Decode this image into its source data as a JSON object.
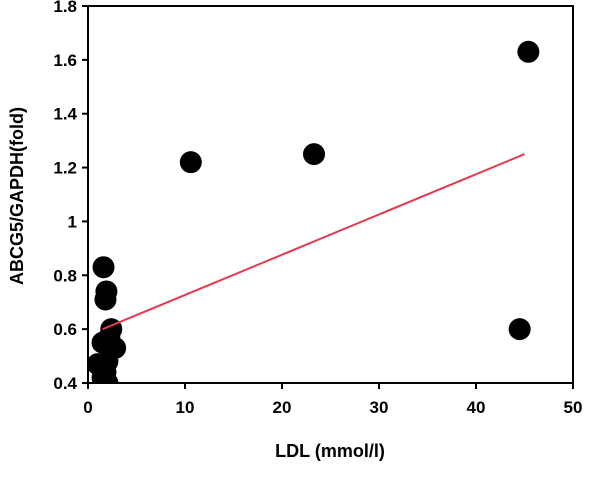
{
  "chart_data": {
    "type": "scatter",
    "title": "",
    "xlabel": "LDL (mmol/l)",
    "ylabel": "ABCG5/GAPDH(fold)",
    "xlim": [
      0,
      50
    ],
    "ylim": [
      0.4,
      1.8
    ],
    "xticks": [
      0,
      10,
      20,
      30,
      40,
      50
    ],
    "yticks": [
      0.4,
      0.6,
      0.8,
      1,
      1.2,
      1.4,
      1.6,
      1.8
    ],
    "xtick_labels": [
      "0",
      "10",
      "20",
      "30",
      "40",
      "50"
    ],
    "ytick_labels": [
      "0.4",
      "0.6",
      "0.8",
      "1",
      "1.2",
      "1.4",
      "1.6",
      "1.8"
    ],
    "grid": false,
    "points": [
      {
        "x": 1.0,
        "y": 0.47
      },
      {
        "x": 1.5,
        "y": 0.42
      },
      {
        "x": 1.5,
        "y": 0.55
      },
      {
        "x": 1.6,
        "y": 0.83
      },
      {
        "x": 1.8,
        "y": 0.44
      },
      {
        "x": 1.8,
        "y": 0.71
      },
      {
        "x": 1.9,
        "y": 0.74
      },
      {
        "x": 2.0,
        "y": 0.4
      },
      {
        "x": 2.0,
        "y": 0.48
      },
      {
        "x": 2.2,
        "y": 0.57
      },
      {
        "x": 2.4,
        "y": 0.6
      },
      {
        "x": 2.8,
        "y": 0.53
      },
      {
        "x": 10.6,
        "y": 1.22
      },
      {
        "x": 23.3,
        "y": 1.25
      },
      {
        "x": 44.5,
        "y": 0.6
      },
      {
        "x": 45.4,
        "y": 1.63
      }
    ],
    "trendline": {
      "x": [
        1.5,
        45.0
      ],
      "y": [
        0.6,
        1.25
      ],
      "color": "#e8384f"
    },
    "marker_color": "#000000"
  }
}
